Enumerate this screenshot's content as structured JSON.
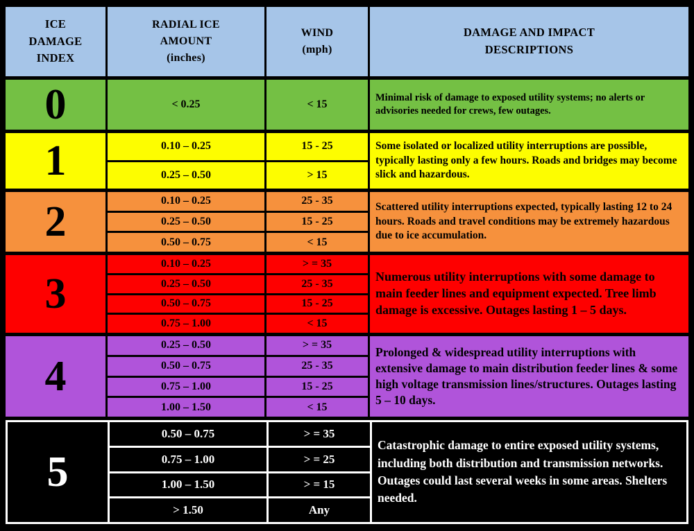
{
  "header": {
    "index": "ICE\nDAMAGE\nINDEX",
    "ice": "RADIAL ICE\nAMOUNT\n(inches)",
    "wind": "WIND\n(mph)",
    "desc": "DAMAGE AND IMPACT\nDESCRIPTIONS",
    "background": "#a6c5e8"
  },
  "chart_data": {
    "type": "table",
    "title": "Ice Damage Index",
    "columns": [
      "ICE DAMAGE INDEX",
      "RADIAL ICE AMOUNT (inches)",
      "WIND (mph)",
      "DAMAGE AND IMPACT DESCRIPTIONS"
    ],
    "header_color": "#a6c5e8",
    "rows": [
      {
        "index": "0",
        "color": "#74c044",
        "entries": [
          {
            "ice": "< 0.25",
            "wind": "< 15"
          }
        ],
        "description": "Minimal risk of damage to exposed utility systems; no alerts or advisories needed for crews, few outages."
      },
      {
        "index": "1",
        "color": "#fdfd00",
        "entries": [
          {
            "ice": "0.10 – 0.25",
            "wind": "15 - 25"
          },
          {
            "ice": "0.25 – 0.50",
            "wind": "> 15"
          }
        ],
        "description": "Some isolated or localized utility interruptions are possible, typically lasting only a few hours. Roads and bridges may become slick and hazardous."
      },
      {
        "index": "2",
        "color": "#f6913d",
        "entries": [
          {
            "ice": "0.10 – 0.25",
            "wind": "25 - 35"
          },
          {
            "ice": "0.25 – 0.50",
            "wind": "15 - 25"
          },
          {
            "ice": "0.50 – 0.75",
            "wind": "< 15"
          }
        ],
        "description": "Scattered utility interruptions expected, typically lasting 12 to 24 hours. Roads and travel conditions may be extremely hazardous due to ice accumulation."
      },
      {
        "index": "3",
        "color": "#fe0000",
        "entries": [
          {
            "ice": "0.10 – 0.25",
            "wind": "> = 35"
          },
          {
            "ice": "0.25 – 0.50",
            "wind": "25 - 35"
          },
          {
            "ice": "0.50 – 0.75",
            "wind": "15 - 25"
          },
          {
            "ice": "0.75 – 1.00",
            "wind": "< 15"
          }
        ],
        "description": "Numerous utility interruptions with some damage to main feeder lines and equipment expected.  Tree limb damage is excessive.  Outages lasting 1 – 5 days."
      },
      {
        "index": "4",
        "color": "#b054da",
        "entries": [
          {
            "ice": "0.25 – 0.50",
            "wind": "> = 35"
          },
          {
            "ice": "0.50 – 0.75",
            "wind": "25 - 35"
          },
          {
            "ice": "0.75 – 1.00",
            "wind": "15 - 25"
          },
          {
            "ice": "1.00 – 1.50",
            "wind": "< 15"
          }
        ],
        "description": "Prolonged & widespread utility interruptions with extensive damage to main distribution feeder lines & some high voltage transmission lines/structures.  Outages lasting 5 – 10 days."
      },
      {
        "index": "5",
        "color": "#000000",
        "entries": [
          {
            "ice": "0.50 – 0.75",
            "wind": "> = 35"
          },
          {
            "ice": "0.75 – 1.00",
            "wind": "> = 25"
          },
          {
            "ice": "1.00 – 1.50",
            "wind": "> = 15"
          },
          {
            "ice": "> 1.50",
            "wind": "Any"
          }
        ],
        "description": "Catastrophic damage to entire exposed utility systems, including both distribution and transmission networks.  Outages could last several weeks in some areas.  Shelters needed."
      }
    ]
  }
}
